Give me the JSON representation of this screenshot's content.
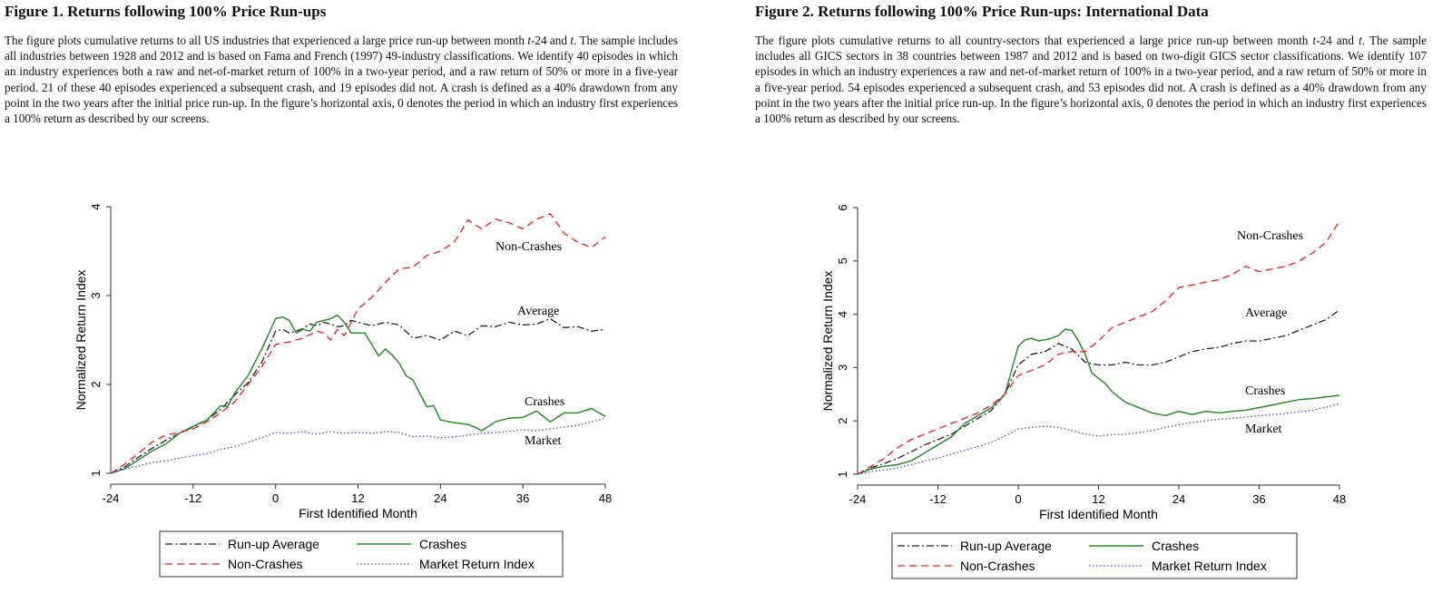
{
  "figures": [
    {
      "title": "Figure 1. Returns following 100% Price Run-ups",
      "caption": {
        "p1": "The figure plots cumulative returns to all US industries that experienced a large price run-up between month ",
        "i1": "t",
        "p2": "-24 and ",
        "i2": "t",
        "p3": ". The sample includes all industries between 1928 and 2012 and is based on Fama and French (1997) 49-industry classifications. We identify 40 episodes in which an industry experiences both a raw and net-of-market return of 100% in a two-year period, and a raw return of 50% or more in a five-year period. 21 of these 40 episodes experienced a subsequent crash, and 19 episodes did not. A crash is defined as a 40% drawdown from any point in the two years after the initial price run-up. In the figure’s horizontal axis, 0 denotes the period in which an industry first experiences a 100% return as described by our screens."
      },
      "chart_data": {
        "type": "line",
        "xlabel": "First Identified Month",
        "ylabel": "Normalized Return Index",
        "xlim": [
          -24,
          48
        ],
        "ylim": [
          1,
          4
        ],
        "xticks": [
          "-24",
          "-12",
          "0",
          "12",
          "24",
          "36",
          "48"
        ],
        "yticks": [
          "1",
          "2",
          "3",
          "4"
        ],
        "legend_position": "bottom",
        "annotations": [
          "Non-Crashes",
          "Average",
          "Crashes",
          "Market"
        ],
        "series": [
          {
            "name": "Run-up Average",
            "color": "#222222",
            "style": "dashdot",
            "x": [
              -24,
              -22,
              -20,
              -18,
              -16,
              -14,
              -12,
              -10,
              -8,
              -6,
              -4,
              -2,
              0,
              1,
              2,
              3,
              4,
              5,
              6,
              7,
              8,
              9,
              10,
              11,
              12,
              14,
              16,
              18,
              20,
              22,
              24,
              26,
              28,
              30,
              32,
              34,
              36,
              38,
              40,
              42,
              44,
              46,
              48
            ],
            "y": [
              1.0,
              1.07,
              1.18,
              1.28,
              1.37,
              1.45,
              1.52,
              1.6,
              1.72,
              1.88,
              2.02,
              2.25,
              2.6,
              2.62,
              2.58,
              2.6,
              2.63,
              2.68,
              2.66,
              2.7,
              2.68,
              2.65,
              2.66,
              2.72,
              2.7,
              2.66,
              2.7,
              2.67,
              2.52,
              2.55,
              2.5,
              2.6,
              2.55,
              2.66,
              2.65,
              2.7,
              2.67,
              2.68,
              2.74,
              2.64,
              2.65,
              2.6,
              2.62
            ]
          },
          {
            "name": "Crashes",
            "color": "#2e8b2e",
            "style": "solid",
            "x": [
              -24,
              -22,
              -20,
              -18,
              -16,
              -14,
              -12,
              -10,
              -8,
              -7,
              -6,
              -4,
              -2,
              0,
              1,
              2,
              3,
              4,
              5,
              6,
              7,
              8,
              9,
              10,
              11,
              12,
              13,
              14,
              15,
              16,
              17,
              18,
              19,
              20,
              21,
              22,
              23,
              24,
              26,
              28,
              29,
              30,
              32,
              34,
              36,
              38,
              40,
              42,
              44,
              46,
              48
            ],
            "y": [
              1.0,
              1.05,
              1.15,
              1.25,
              1.33,
              1.45,
              1.53,
              1.6,
              1.76,
              1.75,
              1.9,
              2.1,
              2.4,
              2.74,
              2.76,
              2.72,
              2.58,
              2.62,
              2.6,
              2.7,
              2.72,
              2.74,
              2.78,
              2.7,
              2.58,
              2.58,
              2.58,
              2.45,
              2.32,
              2.4,
              2.33,
              2.24,
              2.1,
              2.05,
              1.9,
              1.75,
              1.76,
              1.6,
              1.57,
              1.55,
              1.52,
              1.48,
              1.58,
              1.62,
              1.63,
              1.7,
              1.58,
              1.68,
              1.68,
              1.73,
              1.64
            ]
          },
          {
            "name": "Non-Crashes",
            "color": "#e8201f",
            "style": "dashed",
            "x": [
              -24,
              -22,
              -20,
              -18,
              -16,
              -14,
              -12,
              -10,
              -8,
              -6,
              -4,
              -2,
              0,
              2,
              4,
              6,
              7,
              8,
              9,
              10,
              12,
              14,
              16,
              18,
              20,
              22,
              24,
              26,
              28,
              30,
              32,
              34,
              36,
              38,
              40,
              42,
              44,
              46,
              48
            ],
            "y": [
              1.0,
              1.1,
              1.22,
              1.35,
              1.43,
              1.46,
              1.5,
              1.58,
              1.68,
              1.8,
              2.0,
              2.2,
              2.45,
              2.48,
              2.52,
              2.6,
              2.58,
              2.5,
              2.62,
              2.55,
              2.85,
              2.98,
              3.15,
              3.3,
              3.32,
              3.45,
              3.5,
              3.6,
              3.85,
              3.75,
              3.86,
              3.82,
              3.75,
              3.86,
              3.92,
              3.7,
              3.6,
              3.54,
              3.66
            ]
          },
          {
            "name": "Market Return Index",
            "color": "#4a4acc",
            "style": "dotted",
            "x": [
              -24,
              -22,
              -20,
              -18,
              -16,
              -14,
              -12,
              -10,
              -8,
              -6,
              -4,
              -2,
              0,
              2,
              4,
              6,
              8,
              10,
              12,
              14,
              16,
              18,
              20,
              22,
              24,
              26,
              28,
              30,
              32,
              34,
              36,
              38,
              40,
              42,
              44,
              46,
              48
            ],
            "y": [
              1.0,
              1.05,
              1.08,
              1.12,
              1.14,
              1.17,
              1.2,
              1.22,
              1.27,
              1.3,
              1.35,
              1.4,
              1.46,
              1.45,
              1.47,
              1.44,
              1.47,
              1.45,
              1.46,
              1.45,
              1.47,
              1.46,
              1.41,
              1.42,
              1.4,
              1.41,
              1.43,
              1.45,
              1.46,
              1.47,
              1.49,
              1.48,
              1.5,
              1.52,
              1.54,
              1.58,
              1.62
            ]
          }
        ]
      },
      "legend": {
        "run_up_average": "Run-up Average",
        "crashes": "Crashes",
        "non_crashes": "Non-Crashes",
        "market": "Market Return Index"
      }
    },
    {
      "title": "Figure 2. Returns following 100% Price Run-ups: International Data",
      "caption": {
        "p1": "The figure plots cumulative returns to all country-sectors that experienced a large price run-up between month ",
        "i1": "t",
        "p2": "-24 and ",
        "i2": "t",
        "p3": ". The sample includes all GICS sectors in 38 countries between 1987 and 2012 and is based on two-digit GICS sector classifications. We identify 107 episodes in which an industry experiences a raw and net-of-market return of 100% in a two-year period, and a raw return of 50% or more in a five-year period. 54 episodes experienced a subsequent crash, and 53 episodes did not. A crash is defined as a 40% drawdown from any point in the two years after the initial price run-up. In the figure’s horizontal axis, 0 denotes the period in which an industry first experiences a 100% return as described by our screens."
      },
      "chart_data": {
        "type": "line",
        "xlabel": "First Identified Month",
        "ylabel": "Normalized Return Index",
        "xlim": [
          -24,
          48
        ],
        "ylim": [
          1,
          6
        ],
        "xticks": [
          "-24",
          "-12",
          "0",
          "12",
          "24",
          "36",
          "48"
        ],
        "yticks": [
          "1",
          "2",
          "3",
          "4",
          "5",
          "6"
        ],
        "legend_position": "bottom",
        "annotations": [
          "Non-Crashes",
          "Average",
          "Crashes",
          "Market"
        ],
        "series": [
          {
            "name": "Run-up Average",
            "color": "#222222",
            "style": "dashdot",
            "x": [
              -24,
              -22,
              -20,
              -18,
              -16,
              -14,
              -12,
              -10,
              -8,
              -6,
              -4,
              -2,
              0,
              2,
              4,
              6,
              8,
              10,
              12,
              14,
              16,
              18,
              20,
              22,
              24,
              26,
              28,
              30,
              32,
              34,
              36,
              38,
              40,
              42,
              44,
              46,
              48
            ],
            "y": [
              1.0,
              1.12,
              1.2,
              1.3,
              1.42,
              1.55,
              1.65,
              1.75,
              1.9,
              2.05,
              2.2,
              2.5,
              3.05,
              3.25,
              3.3,
              3.45,
              3.35,
              3.1,
              3.05,
              3.05,
              3.1,
              3.05,
              3.05,
              3.1,
              3.2,
              3.3,
              3.35,
              3.38,
              3.45,
              3.5,
              3.5,
              3.55,
              3.6,
              3.7,
              3.8,
              3.9,
              4.08
            ]
          },
          {
            "name": "Crashes",
            "color": "#2e8b2e",
            "style": "solid",
            "x": [
              -24,
              -22,
              -20,
              -18,
              -16,
              -14,
              -12,
              -10,
              -8,
              -6,
              -4,
              -2,
              0,
              1,
              2,
              3,
              4,
              5,
              6,
              7,
              8,
              9,
              10,
              11,
              12,
              13,
              14,
              15,
              16,
              18,
              20,
              22,
              24,
              26,
              28,
              30,
              32,
              34,
              36,
              38,
              40,
              42,
              44,
              46,
              48
            ],
            "y": [
              1.0,
              1.1,
              1.15,
              1.18,
              1.25,
              1.4,
              1.55,
              1.7,
              1.95,
              2.1,
              2.25,
              2.5,
              3.4,
              3.52,
              3.55,
              3.5,
              3.52,
              3.55,
              3.6,
              3.72,
              3.7,
              3.5,
              3.25,
              2.9,
              2.8,
              2.7,
              2.55,
              2.45,
              2.35,
              2.25,
              2.15,
              2.1,
              2.18,
              2.12,
              2.18,
              2.15,
              2.18,
              2.2,
              2.25,
              2.3,
              2.35,
              2.4,
              2.42,
              2.45,
              2.48
            ]
          },
          {
            "name": "Non-Crashes",
            "color": "#e8201f",
            "style": "dashed",
            "x": [
              -24,
              -22,
              -20,
              -18,
              -16,
              -14,
              -12,
              -10,
              -8,
              -6,
              -4,
              -2,
              0,
              2,
              4,
              6,
              8,
              10,
              12,
              14,
              16,
              18,
              20,
              22,
              24,
              26,
              28,
              30,
              32,
              34,
              36,
              38,
              40,
              42,
              44,
              46,
              48
            ],
            "y": [
              1.0,
              1.15,
              1.3,
              1.5,
              1.65,
              1.75,
              1.85,
              1.95,
              2.05,
              2.15,
              2.3,
              2.5,
              2.85,
              2.95,
              3.05,
              3.25,
              3.3,
              3.3,
              3.5,
              3.75,
              3.85,
              3.95,
              4.05,
              4.25,
              4.5,
              4.55,
              4.6,
              4.65,
              4.75,
              4.9,
              4.8,
              4.85,
              4.9,
              5.0,
              5.15,
              5.35,
              5.75
            ]
          },
          {
            "name": "Market Return Index",
            "color": "#4a4acc",
            "style": "dotted",
            "x": [
              -24,
              -22,
              -20,
              -18,
              -16,
              -14,
              -12,
              -10,
              -8,
              -6,
              -4,
              -2,
              0,
              2,
              4,
              6,
              8,
              10,
              12,
              14,
              16,
              18,
              20,
              22,
              24,
              26,
              28,
              30,
              32,
              34,
              36,
              38,
              40,
              42,
              44,
              46,
              48
            ],
            "y": [
              1.0,
              1.05,
              1.08,
              1.12,
              1.18,
              1.25,
              1.3,
              1.38,
              1.45,
              1.52,
              1.6,
              1.72,
              1.85,
              1.88,
              1.9,
              1.88,
              1.82,
              1.75,
              1.72,
              1.74,
              1.75,
              1.78,
              1.82,
              1.88,
              1.93,
              1.97,
              2.0,
              2.03,
              2.05,
              2.07,
              2.1,
              2.12,
              2.14,
              2.17,
              2.2,
              2.26,
              2.32
            ]
          }
        ]
      },
      "legend": {
        "run_up_average": "Run-up Average",
        "crashes": "Crashes",
        "non_crashes": "Non-Crashes",
        "market": "Market Return Index"
      }
    }
  ]
}
